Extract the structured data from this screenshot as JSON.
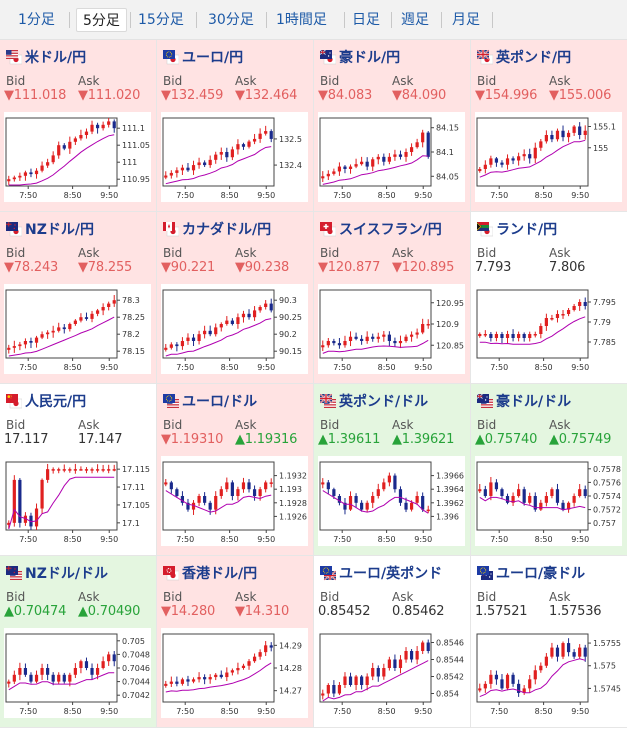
{
  "tabs": [
    {
      "label": "1分足"
    },
    {
      "label": "5分足",
      "active": true
    },
    {
      "label": "15分足"
    },
    {
      "label": "30分足"
    },
    {
      "label": "1時間足"
    },
    {
      "label": "日足"
    },
    {
      "label": "週足"
    },
    {
      "label": "月足"
    }
  ],
  "labels": {
    "bid": "Bid",
    "ask": "Ask"
  },
  "colors": {
    "down_bg": "#ffe3e3",
    "up_bg": "#e4f6e0",
    "down_text": "#e26060",
    "up_text": "#28a33a",
    "bull_candle": "#e02020",
    "bear_candle": "#1a2a8c",
    "ma_line": "#b000b0"
  },
  "pairs": [
    {
      "name": "米ドル/円",
      "flag_icon": "us-jp-flag-icon",
      "trend": "down",
      "bid": "▼111.018",
      "ask": "▼111.020",
      "chart_data": {
        "type": "candlestick",
        "x_ticks": [
          "7:50",
          "8:50",
          "9:50"
        ],
        "y_ticks": [
          "111.1",
          "111.05",
          "111",
          "110.95"
        ],
        "ylim": [
          110.93,
          111.13
        ],
        "closes": [
          110.95,
          110.955,
          110.96,
          110.97,
          110.965,
          110.975,
          110.99,
          111.0,
          111.02,
          111.05,
          111.04,
          111.06,
          111.07,
          111.08,
          111.09,
          111.11,
          111.1,
          111.11,
          111.12,
          111.1
        ]
      }
    },
    {
      "name": "ユーロ/円",
      "flag_icon": "eu-jp-flag-icon",
      "trend": "down",
      "bid": "▼132.459",
      "ask": "▼132.464",
      "chart_data": {
        "type": "candlestick",
        "x_ticks": [
          "7:50",
          "8:50",
          "9:50"
        ],
        "y_ticks": [
          "132.5",
          "132.4"
        ],
        "ylim": [
          132.32,
          132.58
        ],
        "closes": [
          132.36,
          132.37,
          132.38,
          132.39,
          132.38,
          132.4,
          132.41,
          132.4,
          132.42,
          132.44,
          132.45,
          132.43,
          132.46,
          132.48,
          132.47,
          132.49,
          132.5,
          132.52,
          132.53,
          132.5
        ]
      }
    },
    {
      "name": "豪ドル/円",
      "flag_icon": "au-jp-flag-icon",
      "trend": "down",
      "bid": "▼84.083",
      "ask": "▼84.090",
      "chart_data": {
        "type": "candlestick",
        "x_ticks": [
          "7:50",
          "8:50",
          "9:50"
        ],
        "y_ticks": [
          "84.15",
          "84.1",
          "84.05"
        ],
        "ylim": [
          84.03,
          84.17
        ],
        "closes": [
          84.05,
          84.055,
          84.06,
          84.07,
          84.065,
          84.07,
          84.075,
          84.08,
          84.07,
          84.085,
          84.09,
          84.08,
          84.09,
          84.095,
          84.09,
          84.1,
          84.11,
          84.12,
          84.14,
          84.09
        ]
      }
    },
    {
      "name": "英ポンド/円",
      "flag_icon": "gb-jp-flag-icon",
      "trend": "down",
      "bid": "▼154.996",
      "ask": "▼155.006",
      "chart_data": {
        "type": "candlestick",
        "x_ticks": [
          "7:50",
          "8:50",
          "9:50"
        ],
        "y_ticks": [
          "155.1",
          "155"
        ],
        "ylim": [
          154.82,
          155.14
        ],
        "closes": [
          154.9,
          154.92,
          154.95,
          154.93,
          154.92,
          154.95,
          154.94,
          154.96,
          154.97,
          154.95,
          155.0,
          155.03,
          155.06,
          155.04,
          155.08,
          155.05,
          155.07,
          155.1,
          155.06,
          155.08
        ]
      }
    },
    {
      "name": "NZドル/円",
      "flag_icon": "nz-jp-flag-icon",
      "trend": "down",
      "bid": "▼78.243",
      "ask": "▼78.255",
      "chart_data": {
        "type": "candlestick",
        "x_ticks": [
          "7:50",
          "8:50",
          "9:50"
        ],
        "y_ticks": [
          "78.3",
          "78.25",
          "78.2",
          "78.15"
        ],
        "ylim": [
          78.13,
          78.33
        ],
        "closes": [
          78.16,
          78.165,
          78.17,
          78.18,
          78.175,
          78.19,
          78.2,
          78.205,
          78.21,
          78.22,
          78.215,
          78.23,
          78.24,
          78.25,
          78.245,
          78.26,
          78.27,
          78.28,
          78.29,
          78.3
        ]
      }
    },
    {
      "name": "カナダドル/円",
      "flag_icon": "ca-jp-flag-icon",
      "trend": "down",
      "bid": "▼90.221",
      "ask": "▼90.238",
      "chart_data": {
        "type": "candlestick",
        "x_ticks": [
          "7:50",
          "8:50",
          "9:50"
        ],
        "y_ticks": [
          "90.3",
          "90.25",
          "90.2",
          "90.15"
        ],
        "ylim": [
          90.13,
          90.33
        ],
        "closes": [
          90.16,
          90.17,
          90.165,
          90.18,
          90.19,
          90.18,
          90.2,
          90.21,
          90.2,
          90.22,
          90.23,
          90.24,
          90.23,
          90.25,
          90.26,
          90.25,
          90.27,
          90.28,
          90.29,
          90.27
        ]
      }
    },
    {
      "name": "スイスフラン/円",
      "flag_icon": "ch-jp-flag-icon",
      "trend": "down",
      "bid": "▼120.877",
      "ask": "▼120.895",
      "chart_data": {
        "type": "candlestick",
        "x_ticks": [
          "7:50",
          "8:50",
          "9:50"
        ],
        "y_ticks": [
          "120.95",
          "120.9",
          "120.85"
        ],
        "ylim": [
          120.82,
          120.98
        ],
        "closes": [
          120.85,
          120.86,
          120.855,
          120.85,
          120.86,
          120.87,
          120.865,
          120.86,
          120.87,
          120.865,
          120.87,
          120.875,
          120.86,
          120.855,
          120.86,
          120.87,
          120.875,
          120.88,
          120.9,
          120.9
        ]
      }
    },
    {
      "name": "ランド/円",
      "flag_icon": "za-jp-flag-icon",
      "trend": "flat",
      "bid": "7.793",
      "ask": "7.806",
      "chart_data": {
        "type": "candlestick",
        "x_ticks": [
          "7:50",
          "8:50",
          "9:50"
        ],
        "y_ticks": [
          "7.795",
          "7.79",
          "7.785"
        ],
        "ylim": [
          7.781,
          7.798
        ],
        "closes": [
          7.787,
          7.787,
          7.786,
          7.787,
          7.786,
          7.787,
          7.786,
          7.787,
          7.786,
          7.787,
          7.787,
          7.789,
          7.791,
          7.791,
          7.792,
          7.792,
          7.793,
          7.794,
          7.795,
          7.794
        ]
      }
    },
    {
      "name": "人民元/円",
      "flag_icon": "cn-jp-flag-icon",
      "trend": "flat",
      "bid": "17.117",
      "ask": "17.147",
      "chart_data": {
        "type": "candlestick",
        "x_ticks": [
          "7:50",
          "8:50",
          "9:50"
        ],
        "y_ticks": [
          "17.115",
          "17.11",
          "17.105",
          "17.1"
        ],
        "ylim": [
          17.098,
          17.117
        ],
        "closes": [
          17.1,
          17.112,
          17.1,
          17.102,
          17.099,
          17.104,
          17.112,
          17.115,
          17.115,
          17.115,
          17.115,
          17.115,
          17.115,
          17.115,
          17.115,
          17.115,
          17.115,
          17.115,
          17.115,
          17.115
        ]
      }
    },
    {
      "name": "ユーロ/ドル",
      "flag_icon": "eu-us-flag-icon",
      "trend": "down",
      "bid": "▼1.19310",
      "ask": "▲1.19316",
      "chart_data": {
        "type": "candlestick",
        "x_ticks": [
          "7:50",
          "8:50",
          "9:50"
        ],
        "y_ticks": [
          "1.1932",
          "1.193",
          "1.1928",
          "1.1926"
        ],
        "ylim": [
          1.1924,
          1.1934
        ],
        "closes": [
          1.1931,
          1.193,
          1.1929,
          1.1928,
          1.1927,
          1.1928,
          1.1929,
          1.1928,
          1.1927,
          1.1929,
          1.193,
          1.1931,
          1.1929,
          1.193,
          1.1931,
          1.193,
          1.1929,
          1.193,
          1.1931,
          1.1931
        ]
      }
    },
    {
      "name": "英ポンド/ドル",
      "flag_icon": "gb-us-flag-icon",
      "trend": "up",
      "bid": "▲1.39611",
      "ask": "▲1.39621",
      "chart_data": {
        "type": "candlestick",
        "x_ticks": [
          "7:50",
          "8:50",
          "9:50"
        ],
        "y_ticks": [
          "1.3966",
          "1.3964",
          "1.3962",
          "1.396"
        ],
        "ylim": [
          1.3958,
          1.3968
        ],
        "closes": [
          1.3965,
          1.3964,
          1.3963,
          1.3962,
          1.3961,
          1.3963,
          1.3962,
          1.3961,
          1.3962,
          1.3963,
          1.3964,
          1.3965,
          1.3966,
          1.3964,
          1.3962,
          1.3961,
          1.3962,
          1.3963,
          1.3961,
          1.3961
        ]
      }
    },
    {
      "name": "豪ドル/ドル",
      "flag_icon": "au-us-flag-icon",
      "trend": "up",
      "bid": "▲0.75740",
      "ask": "▲0.75749",
      "chart_data": {
        "type": "candlestick",
        "x_ticks": [
          "7:50",
          "8:50",
          "9:50"
        ],
        "y_ticks": [
          "0.7578",
          "0.7576",
          "0.7574",
          "0.7572",
          "0.757"
        ],
        "ylim": [
          0.7569,
          0.7579
        ],
        "closes": [
          0.7575,
          0.7574,
          0.7576,
          0.7575,
          0.7574,
          0.7573,
          0.7574,
          0.7575,
          0.7573,
          0.7574,
          0.7572,
          0.7573,
          0.7574,
          0.7575,
          0.7573,
          0.7572,
          0.7573,
          0.7574,
          0.7575,
          0.7574
        ]
      }
    },
    {
      "name": "NZドル/ドル",
      "flag_icon": "nz-us-flag-icon",
      "trend": "up",
      "bid": "▲0.70474",
      "ask": "▲0.70490",
      "chart_data": {
        "type": "candlestick",
        "x_ticks": [
          "7:50",
          "8:50",
          "9:50"
        ],
        "y_ticks": [
          "0.705",
          "0.7048",
          "0.7046",
          "0.7044",
          "0.7042"
        ],
        "ylim": [
          0.7041,
          0.7051
        ],
        "closes": [
          0.7044,
          0.7045,
          0.7046,
          0.7045,
          0.7044,
          0.7045,
          0.7046,
          0.7045,
          0.7044,
          0.7045,
          0.7044,
          0.7045,
          0.7046,
          0.7047,
          0.7046,
          0.7045,
          0.7046,
          0.7047,
          0.7048,
          0.7047
        ]
      }
    },
    {
      "name": "香港ドル/円",
      "flag_icon": "hk-jp-flag-icon",
      "trend": "down",
      "bid": "▼14.280",
      "ask": "▼14.310",
      "chart_data": {
        "type": "candlestick",
        "x_ticks": [
          "7:50",
          "8:50",
          "9:50"
        ],
        "y_ticks": [
          "14.29",
          "14.28",
          "14.27"
        ],
        "ylim": [
          14.265,
          14.295
        ],
        "closes": [
          14.273,
          14.274,
          14.273,
          14.275,
          14.274,
          14.275,
          14.276,
          14.275,
          14.276,
          14.277,
          14.276,
          14.278,
          14.279,
          14.28,
          14.281,
          14.283,
          14.285,
          14.287,
          14.29,
          14.289
        ]
      }
    },
    {
      "name": "ユーロ/英ポンド",
      "flag_icon": "eu-gb-flag-icon",
      "trend": "flat",
      "bid": "0.85452",
      "ask": "0.85462",
      "chart_data": {
        "type": "candlestick",
        "x_ticks": [
          "7:50",
          "8:50",
          "9:50"
        ],
        "y_ticks": [
          "0.8546",
          "0.8544",
          "0.8542",
          "0.854"
        ],
        "ylim": [
          0.8539,
          0.8547
        ],
        "closes": [
          0.854,
          0.8541,
          0.854,
          0.8541,
          0.8542,
          0.8541,
          0.8542,
          0.8541,
          0.8542,
          0.8543,
          0.8542,
          0.8543,
          0.8544,
          0.8543,
          0.8544,
          0.8545,
          0.8544,
          0.8545,
          0.8546,
          0.8545
        ]
      }
    },
    {
      "name": "ユーロ/豪ドル",
      "flag_icon": "eu-au-flag-icon",
      "trend": "flat",
      "bid": "1.57521",
      "ask": "1.57536",
      "chart_data": {
        "type": "candlestick",
        "x_ticks": [
          "7:50",
          "8:50",
          "9:50"
        ],
        "y_ticks": [
          "1.5755",
          "1.575",
          "1.5745"
        ],
        "ylim": [
          1.5742,
          1.5757
        ],
        "closes": [
          1.5745,
          1.5746,
          1.5748,
          1.5747,
          1.5745,
          1.5748,
          1.5746,
          1.5744,
          1.5745,
          1.5747,
          1.5749,
          1.575,
          1.5752,
          1.5754,
          1.5752,
          1.5755,
          1.5753,
          1.5752,
          1.5754,
          1.5752
        ]
      }
    }
  ]
}
